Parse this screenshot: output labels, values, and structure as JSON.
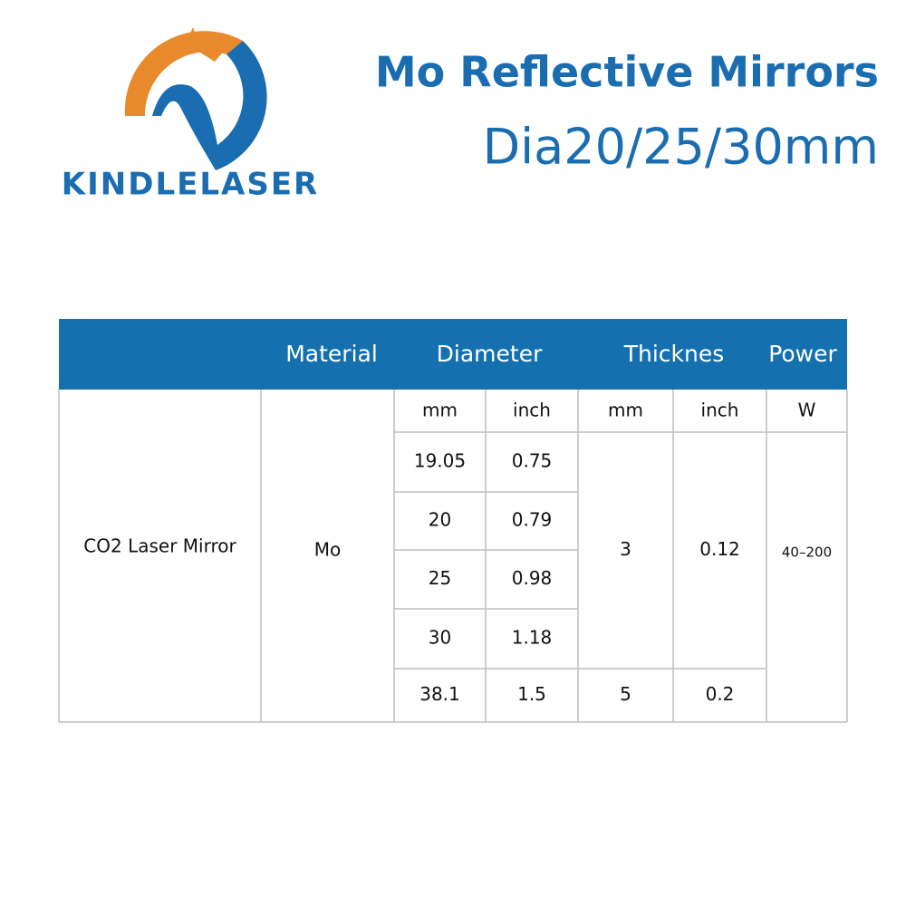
{
  "header": {
    "brand": "KINDLELASER",
    "title": "Mo Reflective Mirrors",
    "subtitle": "Dia20/25/30mm"
  },
  "table": {
    "columns": [
      "Material",
      "Diameter",
      "Thicknes",
      "Power"
    ],
    "units": [
      "mm",
      "inch",
      "mm",
      "inch",
      "W"
    ],
    "product": "CO2 Laser Mirror",
    "material": "Mo",
    "diameters": [
      [
        19.05,
        0.75
      ],
      [
        20,
        0.79
      ],
      [
        25,
        0.98
      ],
      [
        30,
        1.18
      ],
      [
        38.1,
        1.5
      ]
    ],
    "thickness": [
      {
        "mm": 3,
        "inch": 0.12
      },
      {
        "mm": 5,
        "inch": 0.2
      }
    ],
    "power": "40–200"
  }
}
